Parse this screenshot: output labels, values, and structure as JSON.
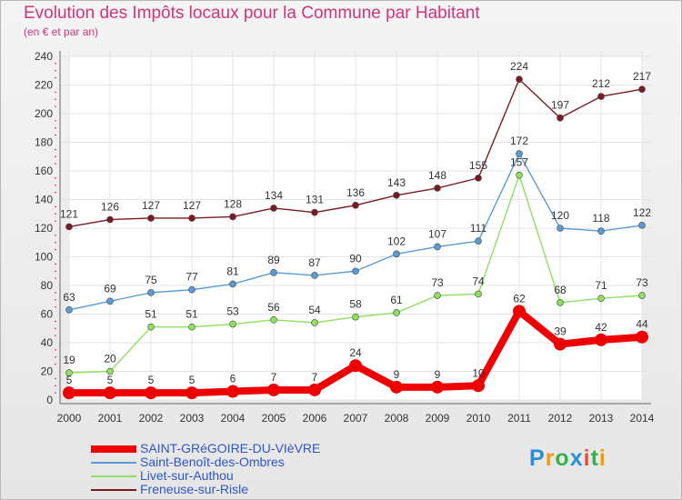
{
  "chart_data": {
    "type": "line",
    "title": "Evolution des Impôts locaux pour la Commune par Habitant",
    "subtitle": "(en € et par an)",
    "xlabel": "",
    "ylabel": "",
    "ylim": [
      0,
      240
    ],
    "yticks": [
      0,
      20,
      40,
      60,
      80,
      100,
      120,
      140,
      160,
      180,
      200,
      220,
      240
    ],
    "categories": [
      "2000",
      "2001",
      "2002",
      "2003",
      "2004",
      "2005",
      "2006",
      "2007",
      "2008",
      "2009",
      "2010",
      "2011",
      "2012",
      "2013",
      "2014"
    ],
    "grid": true,
    "legend_position": "bottom-left",
    "series": [
      {
        "name": "Freneuse-sur-Risle",
        "color": "#7a1b22",
        "values": [
          121,
          126,
          127,
          127,
          128,
          134,
          131,
          136,
          143,
          148,
          155,
          224,
          197,
          212,
          217
        ]
      },
      {
        "name": "Saint-Benoît-des-Ombres",
        "color": "#5b9bd5",
        "values": [
          63,
          69,
          75,
          77,
          81,
          89,
          87,
          90,
          102,
          107,
          111,
          172,
          120,
          118,
          122
        ]
      },
      {
        "name": "Livet-sur-Authou",
        "color": "#8ee05e",
        "values": [
          19,
          20,
          51,
          51,
          53,
          56,
          54,
          58,
          61,
          73,
          74,
          157,
          68,
          71,
          73
        ]
      },
      {
        "name": "SAINT-GRéGOIRE-DU-VIèVRE",
        "color": "#ee0000",
        "values": [
          5,
          5,
          5,
          5,
          6,
          7,
          7,
          24,
          9,
          9,
          10,
          62,
          39,
          42,
          44
        ]
      }
    ],
    "legend_order": [
      "SAINT-GRéGOIRE-DU-VIèVRE",
      "Saint-Benoît-des-Ombres",
      "Livet-sur-Authou",
      "Freneuse-sur-Risle"
    ]
  },
  "logo": {
    "letters": [
      "P",
      "r",
      "o",
      "x",
      "i",
      "t",
      "i"
    ],
    "colors": [
      "#2a8fd6",
      "#f39c12",
      "#35b34a",
      "#2a8fd6",
      "#e74c3c",
      "#35b34a",
      "#f39c12"
    ]
  }
}
